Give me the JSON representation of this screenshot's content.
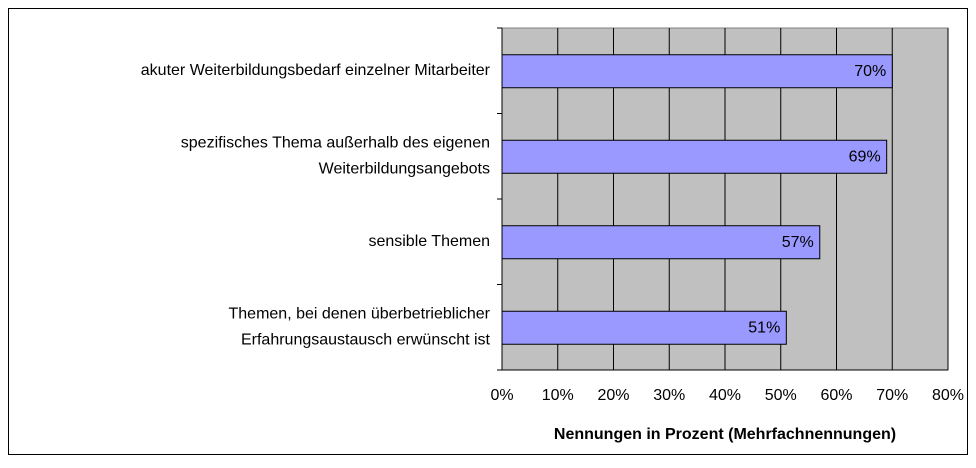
{
  "chart_data": {
    "type": "bar",
    "orientation": "horizontal",
    "categories": [
      [
        "akuter Weiterbildungsbedarf einzelner Mitarbeiter"
      ],
      [
        "spezifisches Thema außerhalb des eigenen",
        "Weiterbildungsangebots"
      ],
      [
        "sensible Themen"
      ],
      [
        "Themen, bei denen überbetrieblicher",
        "Erfahrungsaustausch erwünscht ist"
      ]
    ],
    "values": [
      70,
      69,
      57,
      51
    ],
    "value_labels": [
      "70%",
      "69%",
      "57%",
      "51%"
    ],
    "color": "#9999ff",
    "xlim": [
      0,
      80
    ],
    "xticks": [
      {
        "value": 0,
        "label": "0%"
      },
      {
        "value": 10,
        "label": "10%"
      },
      {
        "value": 20,
        "label": "20%"
      },
      {
        "value": 30,
        "label": "30%"
      },
      {
        "value": 40,
        "label": "40%"
      },
      {
        "value": 50,
        "label": "50%"
      },
      {
        "value": 60,
        "label": "60%"
      },
      {
        "value": 70,
        "label": "70%"
      },
      {
        "value": 80,
        "label": "80%"
      }
    ],
    "xlabel": "Nennungen in Prozent (Mehrfachnennungen)",
    "grid": true
  }
}
